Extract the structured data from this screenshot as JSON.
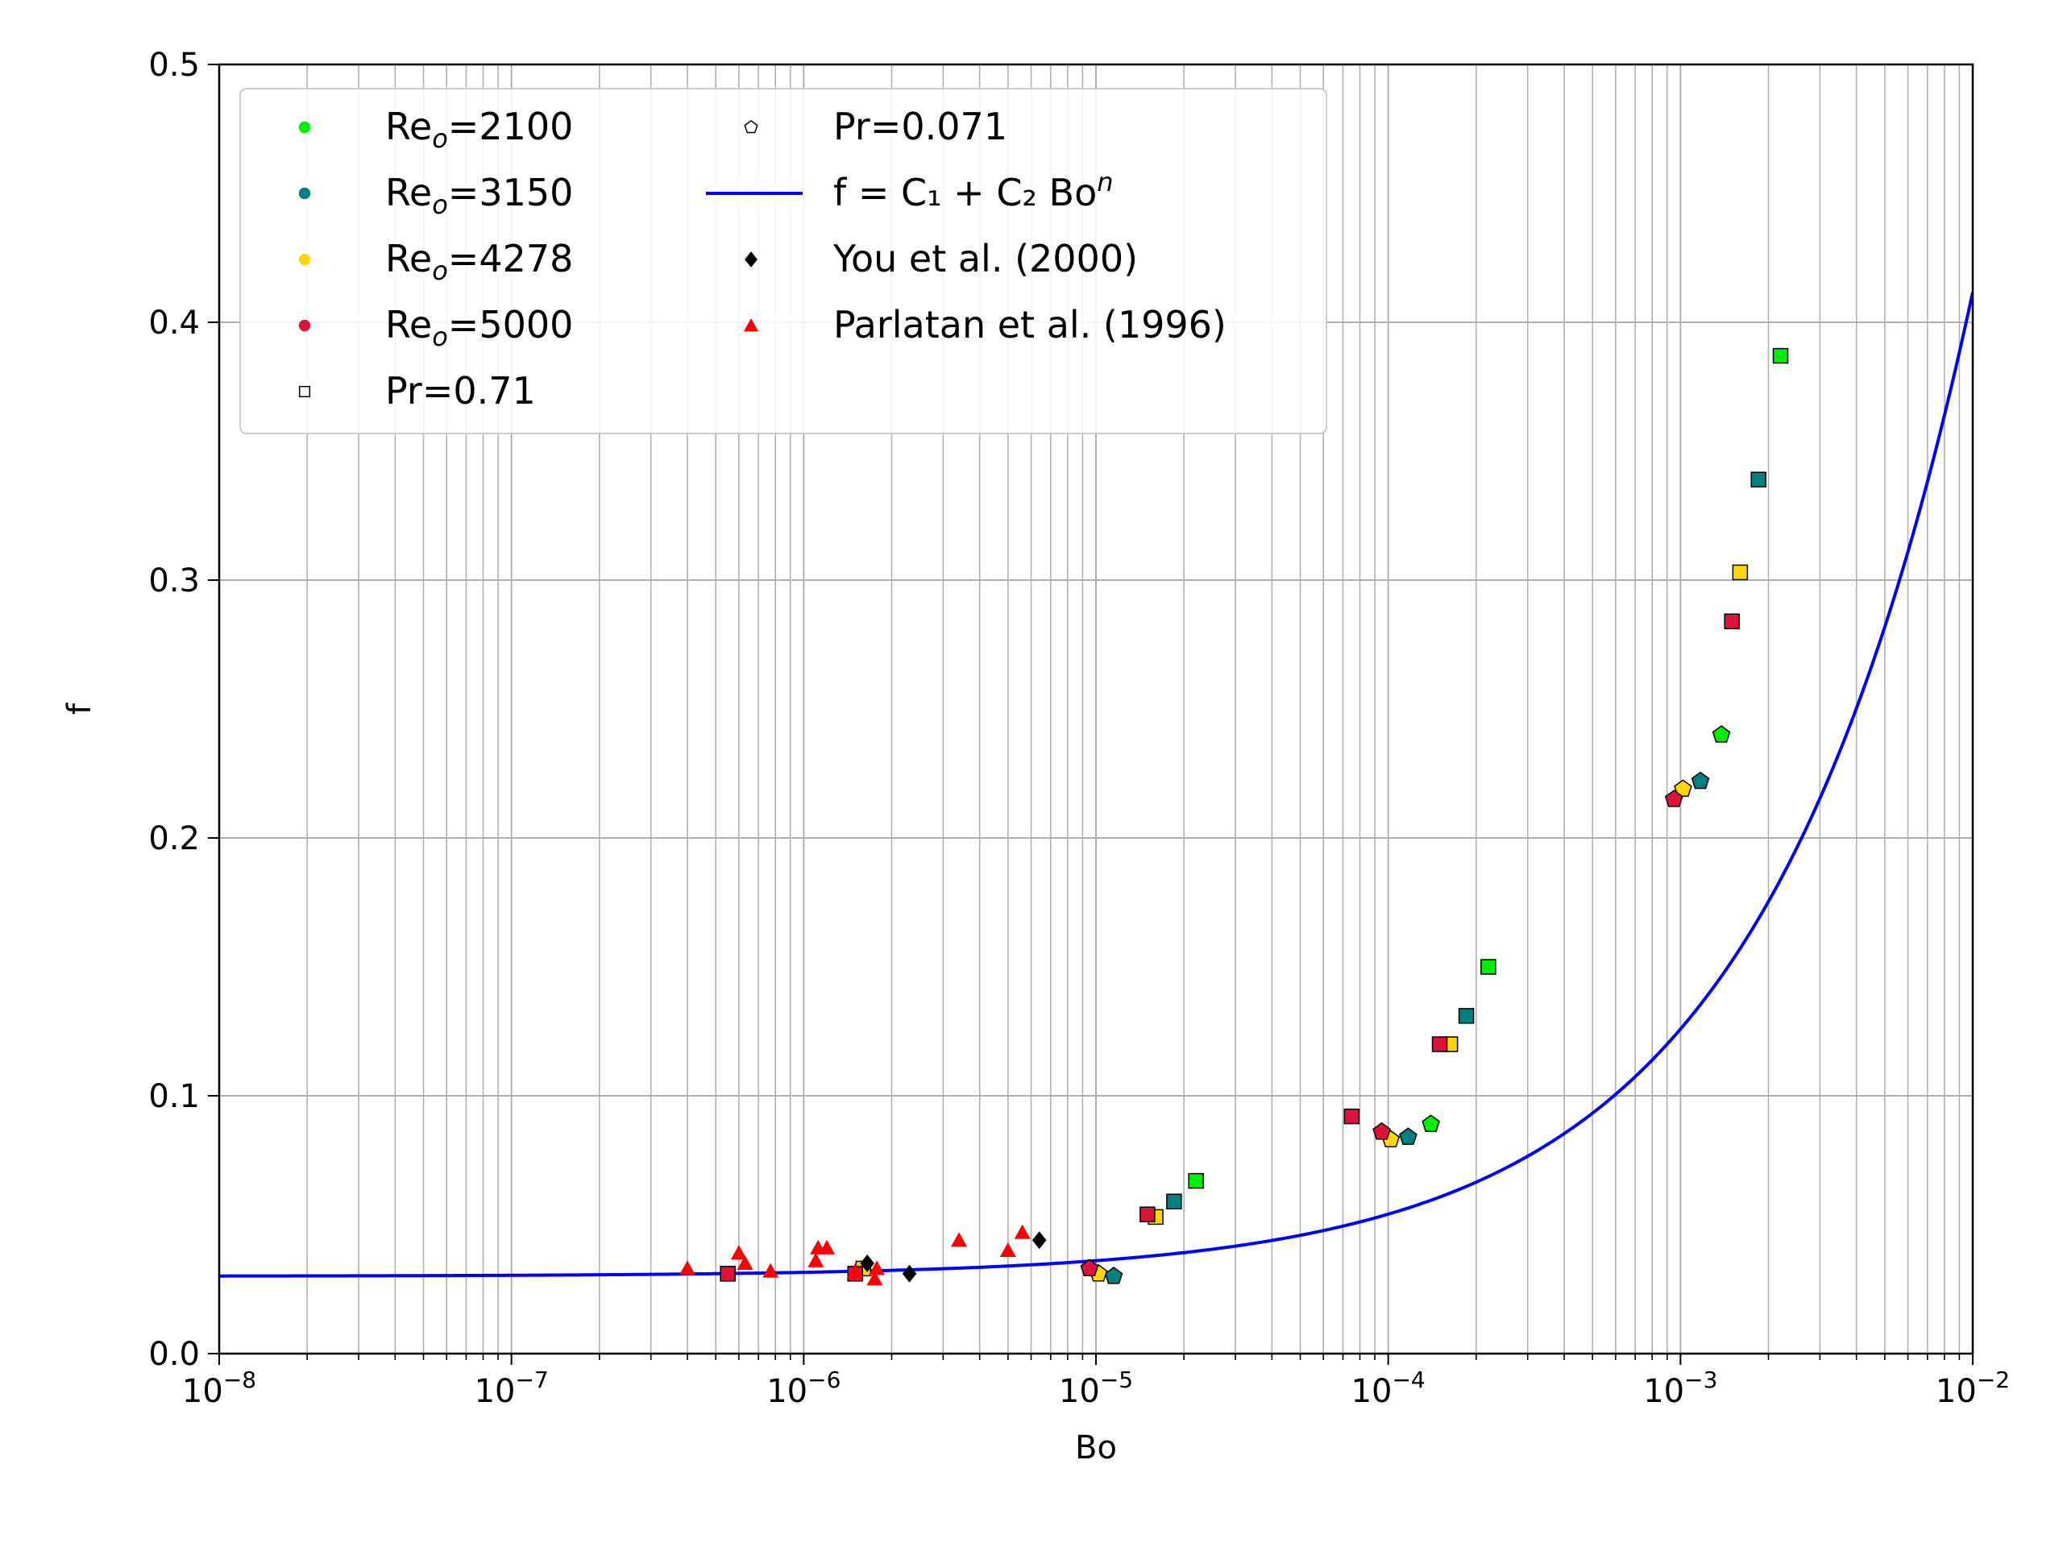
{
  "chart_data": {
    "type": "scatter",
    "xlabel": "Bo",
    "ylabel": "f",
    "xscale": "log",
    "xlim": [
      1e-08,
      0.01
    ],
    "ylim": [
      0,
      0.5
    ],
    "grid": "major and minor (x), major (y)",
    "legend_position": "top-left",
    "x_tick_labels": [
      {
        "v": 1e-08,
        "base": "10",
        "exp": "−8"
      },
      {
        "v": 1e-07,
        "base": "10",
        "exp": "−7"
      },
      {
        "v": 1e-06,
        "base": "10",
        "exp": "−6"
      },
      {
        "v": 1e-05,
        "base": "10",
        "exp": "−5"
      },
      {
        "v": 0.0001,
        "base": "10",
        "exp": "−4"
      },
      {
        "v": 0.001,
        "base": "10",
        "exp": "−3"
      },
      {
        "v": 0.01,
        "base": "10",
        "exp": "−2"
      }
    ],
    "y_tick_labels": [
      {
        "v": 0.0,
        "label": "0.0"
      },
      {
        "v": 0.1,
        "label": "0.1"
      },
      {
        "v": 0.2,
        "label": "0.2"
      },
      {
        "v": 0.3,
        "label": "0.3"
      },
      {
        "v": 0.4,
        "label": "0.4"
      },
      {
        "v": 0.5,
        "label": "0.5"
      }
    ],
    "colors": {
      "2100": "#00ee00",
      "3150": "#008080",
      "4278": "#ffd700",
      "5000": "#dc143c",
      "fit": "#0000ff",
      "you": "#000000",
      "parlatan": "#ff0000"
    },
    "legend": [
      {
        "label": "Re",
        "sub": "o",
        "tail": "=2100",
        "marker": "dot",
        "color": "#00ee00"
      },
      {
        "label": "Re",
        "sub": "o",
        "tail": "=3150",
        "marker": "dot",
        "color": "#008080"
      },
      {
        "label": "Re",
        "sub": "o",
        "tail": "=4278",
        "marker": "dot",
        "color": "#ffd700"
      },
      {
        "label": "Re",
        "sub": "o",
        "tail": "=5000",
        "marker": "dot",
        "color": "#dc143c"
      },
      {
        "label": "Pr=0.71",
        "marker": "square-open"
      },
      {
        "label": "Pr=0.071",
        "marker": "pentagon-open"
      },
      {
        "label": "f = C₁ + C₂ Bo",
        "sup": "n",
        "marker": "line",
        "color": "#0000ff"
      },
      {
        "label": "You et al. (2000)",
        "marker": "diamond",
        "color": "#000000"
      },
      {
        "label": "Parlatan et al. (1996)",
        "marker": "triangle",
        "color": "#ff0000"
      }
    ],
    "fit_curve": {
      "C1": 0.03,
      "C2": 6.05,
      "n": 0.6
    },
    "series": [
      {
        "name": "Re_o=2100, Pr=0.71",
        "color": "#00ee00",
        "marker": "square",
        "points": [
          [
            2.2e-05,
            0.067
          ],
          [
            0.00022,
            0.15
          ],
          [
            0.0022,
            0.387
          ]
        ]
      },
      {
        "name": "Re_o=3150, Pr=0.71",
        "color": "#008080",
        "marker": "square",
        "points": [
          [
            1.85e-05,
            0.059
          ],
          [
            0.000185,
            0.131
          ],
          [
            0.00185,
            0.339
          ]
        ]
      },
      {
        "name": "Re_o=4278, Pr=0.71",
        "color": "#ffd700",
        "marker": "square",
        "points": [
          [
            5.5e-07,
            0.031
          ],
          [
            1.6e-06,
            0.033
          ],
          [
            1.6e-05,
            0.053
          ],
          [
            0.000163,
            0.12
          ],
          [
            0.0016,
            0.303
          ]
        ]
      },
      {
        "name": "Re_o=5000, Pr=0.71",
        "color": "#dc143c",
        "marker": "square",
        "points": [
          [
            5.5e-07,
            0.031
          ],
          [
            1.5e-06,
            0.031
          ],
          [
            1.5e-05,
            0.054
          ],
          [
            7.5e-05,
            0.092
          ],
          [
            0.00015,
            0.12
          ],
          [
            0.0015,
            0.284
          ]
        ]
      },
      {
        "name": "Re_o=2100, Pr=0.071",
        "color": "#00ee00",
        "marker": "pentagon",
        "points": [
          [
            0.00014,
            0.089
          ],
          [
            0.00138,
            0.24
          ]
        ]
      },
      {
        "name": "Re_o=3150, Pr=0.071",
        "color": "#008080",
        "marker": "pentagon",
        "points": [
          [
            1.15e-05,
            0.03
          ],
          [
            0.000117,
            0.084
          ],
          [
            0.00117,
            0.222
          ]
        ]
      },
      {
        "name": "Re_o=4278, Pr=0.071",
        "color": "#ffd700",
        "marker": "pentagon",
        "points": [
          [
            1.02e-05,
            0.031
          ],
          [
            0.000102,
            0.083
          ],
          [
            0.00102,
            0.219
          ]
        ]
      },
      {
        "name": "Re_o=5000, Pr=0.071",
        "color": "#dc143c",
        "marker": "pentagon",
        "points": [
          [
            9.5e-06,
            0.033
          ],
          [
            9.5e-05,
            0.086
          ],
          [
            0.00095,
            0.215
          ]
        ]
      },
      {
        "name": "You et al. (2000)",
        "color": "#000000",
        "marker": "diamond",
        "points": [
          [
            1.65e-06,
            0.035
          ],
          [
            2.3e-06,
            0.031
          ],
          [
            6.4e-06,
            0.044
          ]
        ]
      },
      {
        "name": "Parlatan et al. (1996)",
        "color": "#ff0000",
        "marker": "triangle",
        "points": [
          [
            4e-07,
            0.033
          ],
          [
            6e-07,
            0.039
          ],
          [
            6.3e-07,
            0.035
          ],
          [
            7.7e-07,
            0.032
          ],
          [
            1.1e-06,
            0.036
          ],
          [
            1.12e-06,
            0.041
          ],
          [
            1.2e-06,
            0.041
          ],
          [
            1.5e-06,
            0.032
          ],
          [
            1.75e-06,
            0.029
          ],
          [
            1.78e-06,
            0.033
          ],
          [
            3.4e-06,
            0.044
          ],
          [
            5e-06,
            0.04
          ],
          [
            5.6e-06,
            0.047
          ]
        ]
      }
    ]
  }
}
